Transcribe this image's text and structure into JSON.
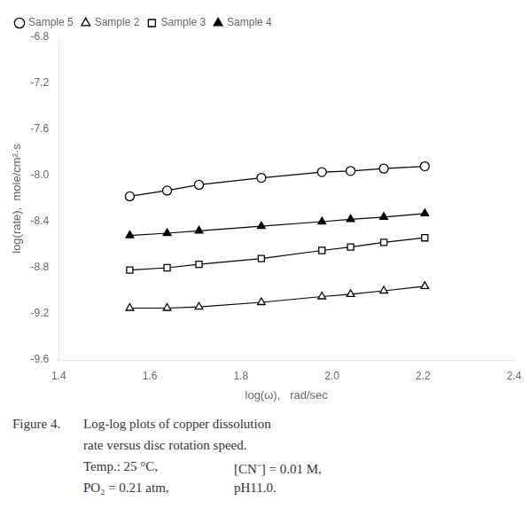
{
  "chart_data": {
    "type": "line",
    "xlabel": "log(ω),   rad/sec",
    "ylabel": "log(rate),  mole/cm²·s",
    "xlim": [
      1.4,
      2.4
    ],
    "ylim": [
      -9.6,
      -6.8
    ],
    "xticks": [
      1.4,
      1.6,
      1.8,
      {
        "value": 2.0,
        "label": "2.0"
      },
      2.2,
      2.4
    ],
    "yticks": [
      -9.6,
      -9.2,
      -8.8,
      -8.4,
      {
        "value": -8.0,
        "label": "-8.0"
      },
      -7.6,
      -7.2,
      -6.8
    ],
    "x": [
      1.556,
      1.638,
      1.708,
      1.845,
      1.978,
      2.041,
      2.114,
      2.204
    ],
    "series": [
      {
        "name": "Sample 5",
        "color": "black",
        "marker": "open-circle",
        "values": [
          -8.18,
          -8.13,
          -8.08,
          -8.02,
          -7.97,
          -7.96,
          -7.94,
          -7.92
        ]
      },
      {
        "name": "Sample 2",
        "color": "black",
        "marker": "open-triangle",
        "values": [
          -9.15,
          -9.15,
          -9.14,
          -9.1,
          -9.05,
          -9.03,
          -9.0,
          -8.96
        ]
      },
      {
        "name": "Sample 3",
        "color": "black",
        "marker": "open-square",
        "values": [
          -8.82,
          -8.8,
          -8.77,
          -8.72,
          -8.65,
          -8.62,
          -8.58,
          -8.54
        ]
      },
      {
        "name": "Sample 4",
        "color": "black",
        "marker": "filled-triangle",
        "values": [
          -8.52,
          -8.5,
          -8.48,
          -8.44,
          -8.4,
          -8.38,
          -8.36,
          -8.33
        ]
      }
    ],
    "legend": "upper left",
    "grid": false,
    "annotations": [
      "Figure 4.",
      "Log-log plots of copper dissolution",
      "rate versus disc rotation speed.",
      "Temp.: 25 °C,",
      "[CN⁻] = 0.01 M,",
      "PO₂ = 0.21 atm,",
      "pH11.0."
    ]
  }
}
